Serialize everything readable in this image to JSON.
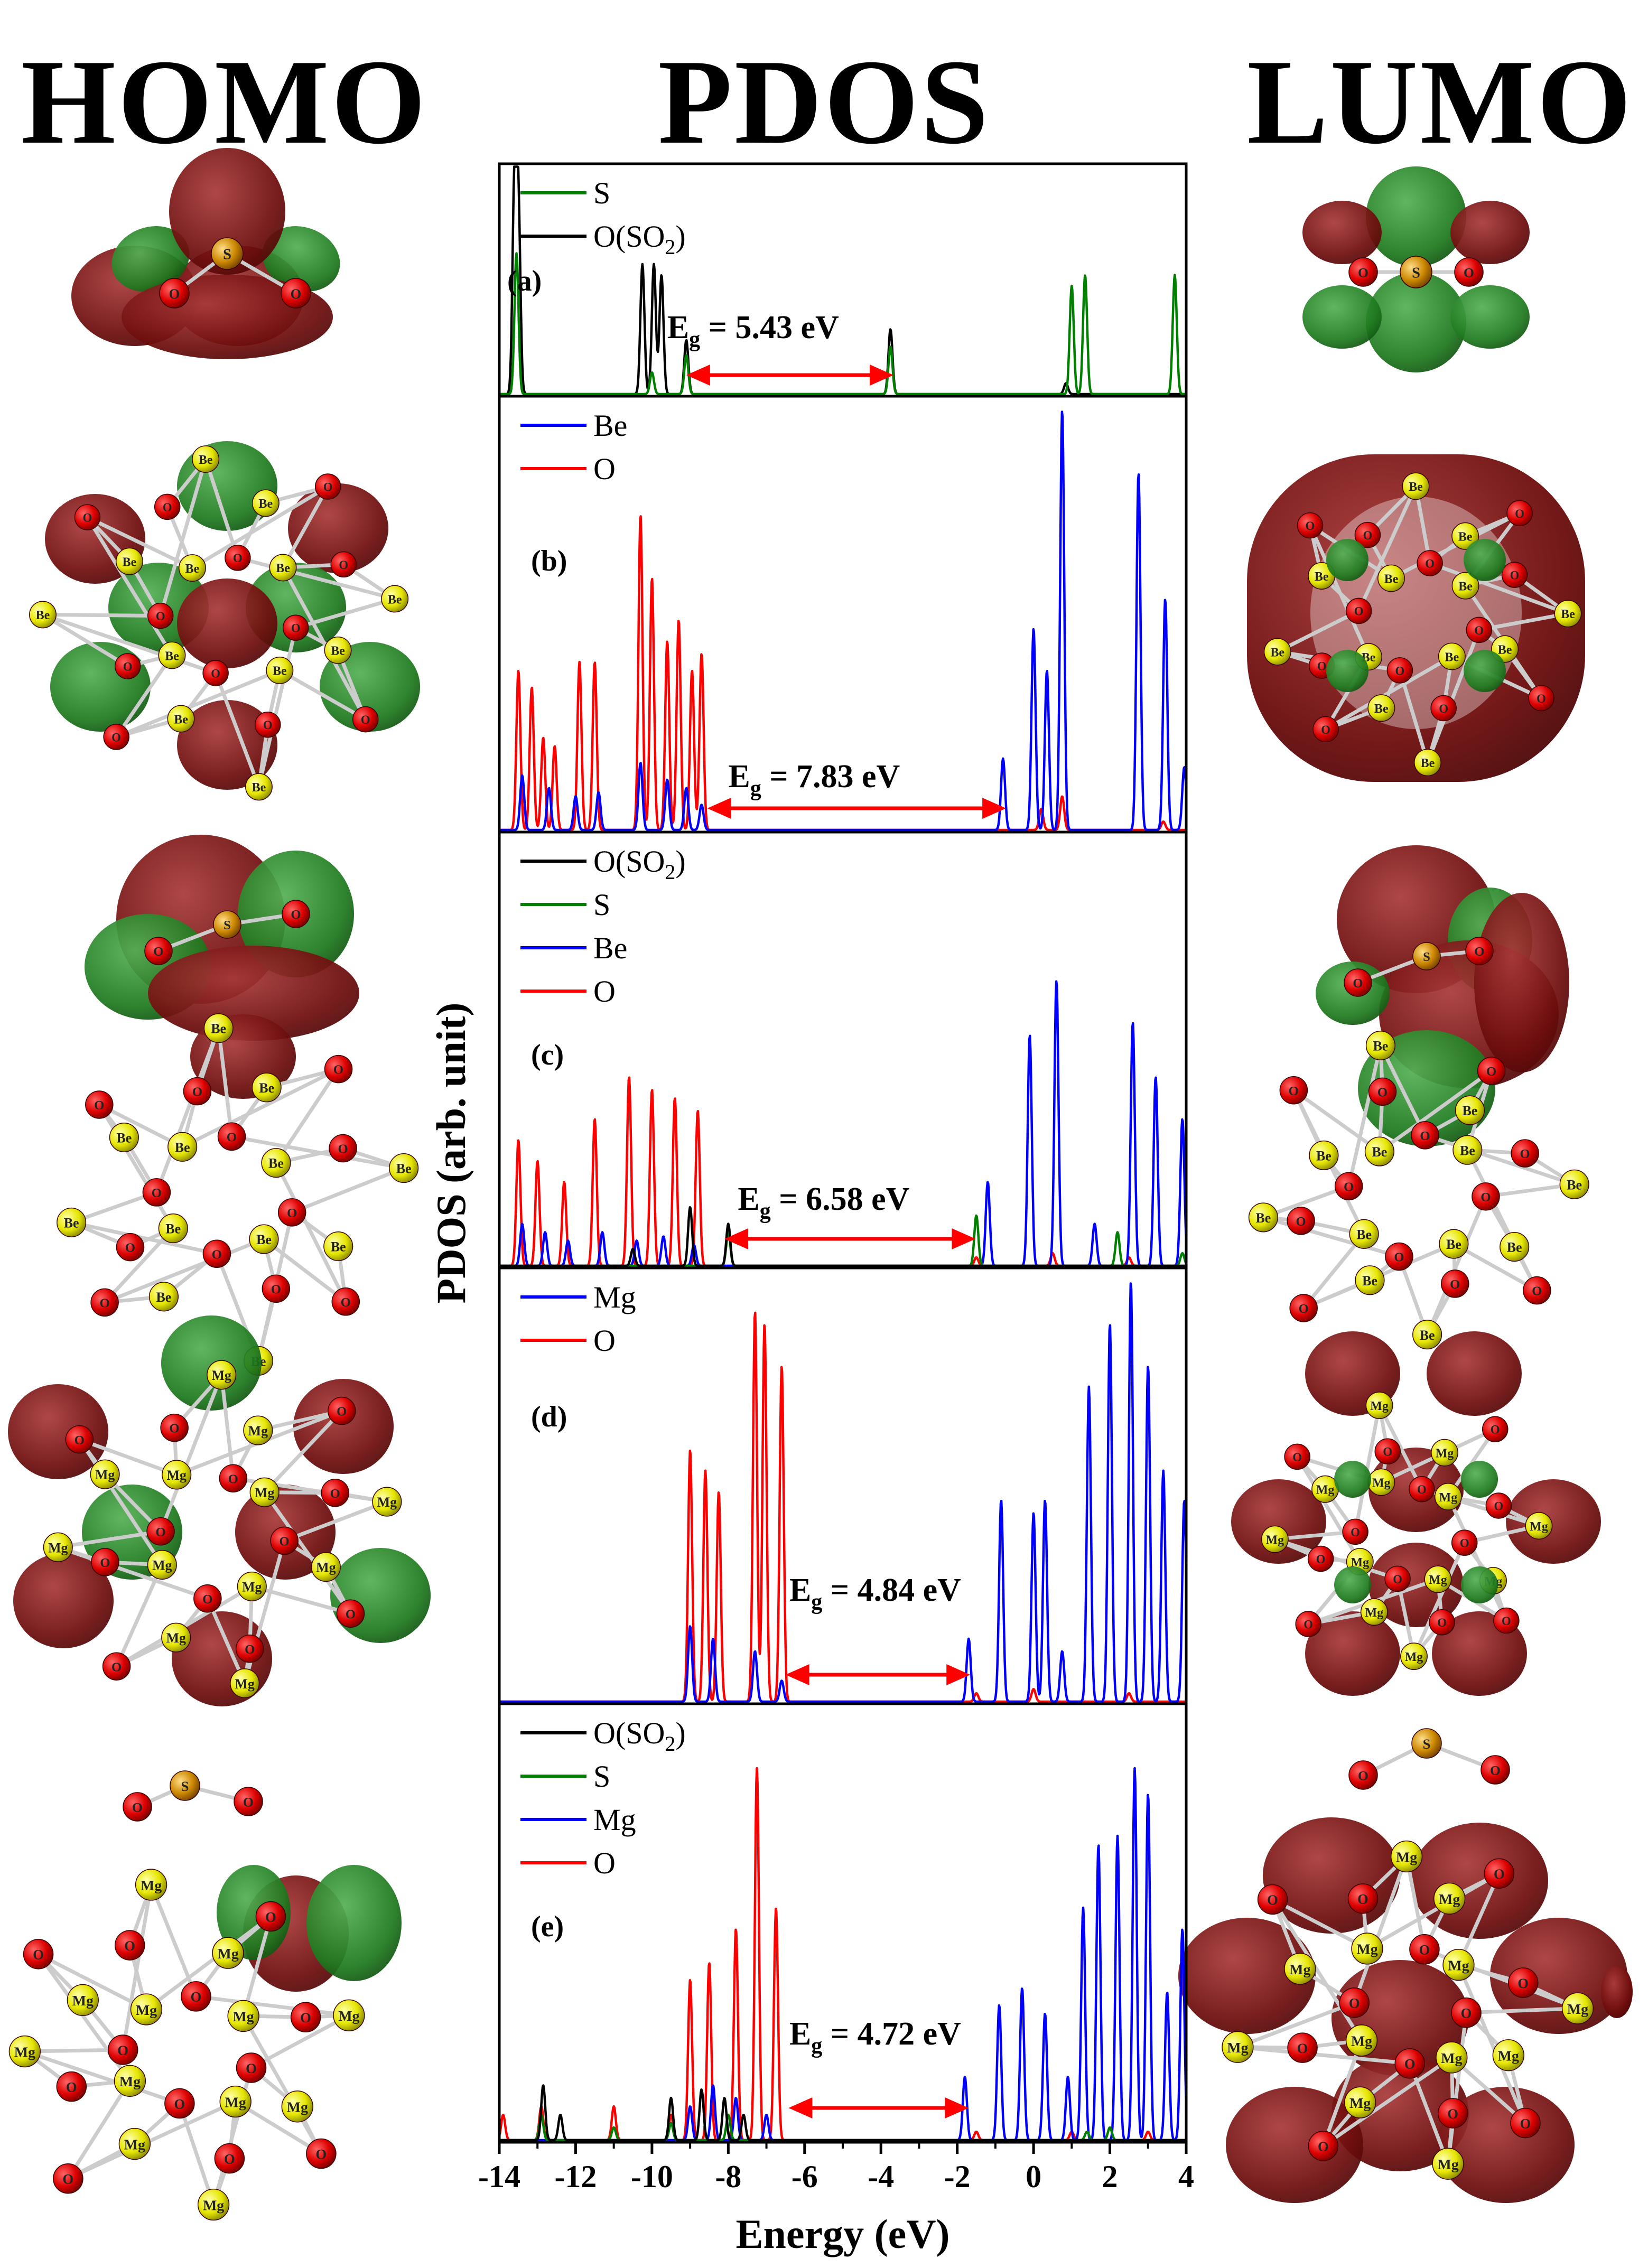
{
  "headers": {
    "homo": "HOMO",
    "pdos": "PDOS",
    "lumo": "LUMO"
  },
  "colors": {
    "S": "#008000",
    "O_SO2": "#000000",
    "Be": "#0000ff",
    "O": "#ff0000",
    "Mg": "#0000ff",
    "gap_arrow": "#ff0000",
    "orbital_red": "#6e0d0d",
    "orbital_green": "#1f7a1f",
    "atom_O": "#dd0000",
    "atom_metal": "#e6e600",
    "atom_S": "#cc8800"
  },
  "chart_data": {
    "type": "line",
    "title": "PDOS",
    "xlabel": "Energy (eV)",
    "ylabel": "PDOS (arb. unit)",
    "xlim": [
      -14,
      4
    ],
    "xticks": [
      -14,
      -12,
      -10,
      -8,
      -6,
      -4,
      -2,
      0,
      2,
      4
    ],
    "xtick_labels": [
      "-14",
      "-12",
      "-10",
      "-8",
      "-6",
      "-4",
      "-2",
      "0",
      "2",
      "4"
    ],
    "panels": [
      {
        "label": "(a)",
        "gap_text": "E",
        "gap_sub": "g",
        "gap_value": " = 5.43 eV",
        "gap_from": -9.1,
        "gap_to": -3.67,
        "legend": [
          {
            "name": "S",
            "color": "#008000"
          },
          {
            "name": "O(SO",
            "sub": "2",
            "tail": ")",
            "color": "#000000"
          }
        ],
        "series": [
          {
            "name": "O(SO2)",
            "color": "#000000",
            "peaks": [
              [
                -13.6,
                1.0
              ],
              [
                -13.5,
                0.85
              ],
              [
                -10.25,
                0.6
              ],
              [
                -9.95,
                0.6
              ],
              [
                -9.75,
                0.55
              ],
              [
                -9.1,
                0.25
              ],
              [
                -3.75,
                0.3
              ],
              [
                0.85,
                0.05
              ]
            ]
          },
          {
            "name": "S",
            "color": "#008000",
            "peaks": [
              [
                -13.55,
                0.65
              ],
              [
                -10.0,
                0.1
              ],
              [
                -9.1,
                0.18
              ],
              [
                -3.75,
                0.22
              ],
              [
                1.0,
                0.5
              ],
              [
                1.35,
                0.55
              ],
              [
                3.7,
                0.55
              ]
            ]
          }
        ]
      },
      {
        "label": "(b)",
        "gap_text": "E",
        "gap_sub": "g",
        "gap_value": " = 7.83 eV",
        "gap_from": -8.55,
        "gap_to": -0.72,
        "legend": [
          {
            "name": "Be",
            "color": "#0000ff"
          },
          {
            "name": "O",
            "color": "#ff0000"
          }
        ],
        "series": [
          {
            "name": "O",
            "color": "#ff0000",
            "peaks": [
              [
                -13.5,
                0.38
              ],
              [
                -13.15,
                0.34
              ],
              [
                -12.85,
                0.22
              ],
              [
                -12.55,
                0.2
              ],
              [
                -11.9,
                0.4
              ],
              [
                -11.5,
                0.4
              ],
              [
                -10.3,
                0.75
              ],
              [
                -10.0,
                0.6
              ],
              [
                -9.6,
                0.45
              ],
              [
                -9.3,
                0.5
              ],
              [
                -8.95,
                0.38
              ],
              [
                -8.7,
                0.42
              ],
              [
                0.2,
                0.05
              ],
              [
                0.75,
                0.08
              ],
              [
                3.4,
                0.02
              ]
            ]
          },
          {
            "name": "Be",
            "color": "#0000ff",
            "peaks": [
              [
                -13.4,
                0.13
              ],
              [
                -12.7,
                0.1
              ],
              [
                -12.0,
                0.08
              ],
              [
                -11.4,
                0.09
              ],
              [
                -10.3,
                0.16
              ],
              [
                -9.6,
                0.12
              ],
              [
                -9.1,
                0.1
              ],
              [
                -8.7,
                0.06
              ],
              [
                -0.8,
                0.17
              ],
              [
                0.0,
                0.48
              ],
              [
                0.35,
                0.38
              ],
              [
                0.75,
                1.0
              ],
              [
                2.75,
                0.85
              ],
              [
                3.45,
                0.55
              ],
              [
                3.95,
                0.15
              ]
            ]
          }
        ]
      },
      {
        "label": "(c)",
        "gap_text": "E",
        "gap_sub": "g",
        "gap_value": " = 6.58 eV",
        "gap_from": -8.1,
        "gap_to": -1.52,
        "legend": [
          {
            "name": "O(SO",
            "sub": "2",
            "tail": ")",
            "color": "#000000"
          },
          {
            "name": "S",
            "color": "#008000"
          },
          {
            "name": "Be",
            "color": "#0000ff"
          },
          {
            "name": "O",
            "color": "#ff0000"
          }
        ],
        "series": [
          {
            "name": "O",
            "color": "#ff0000",
            "peaks": [
              [
                -13.5,
                0.3
              ],
              [
                -13.0,
                0.25
              ],
              [
                -12.3,
                0.2
              ],
              [
                -11.5,
                0.35
              ],
              [
                -10.6,
                0.45
              ],
              [
                -10.0,
                0.42
              ],
              [
                -9.4,
                0.4
              ],
              [
                -8.8,
                0.37
              ],
              [
                -1.5,
                0.02
              ],
              [
                0.5,
                0.03
              ],
              [
                2.5,
                0.02
              ]
            ]
          },
          {
            "name": "Be",
            "color": "#0000ff",
            "peaks": [
              [
                -13.4,
                0.1
              ],
              [
                -12.8,
                0.08
              ],
              [
                -12.2,
                0.06
              ],
              [
                -11.3,
                0.08
              ],
              [
                -10.4,
                0.06
              ],
              [
                -9.7,
                0.07
              ],
              [
                -8.9,
                0.05
              ],
              [
                -1.2,
                0.2
              ],
              [
                -0.1,
                0.55
              ],
              [
                0.6,
                0.68
              ],
              [
                2.6,
                0.58
              ],
              [
                3.2,
                0.45
              ],
              [
                3.9,
                0.35
              ],
              [
                1.6,
                0.1
              ]
            ]
          },
          {
            "name": "S",
            "color": "#008000",
            "peaks": [
              [
                -8.0,
                0.08
              ],
              [
                -1.5,
                0.12
              ],
              [
                2.2,
                0.08
              ],
              [
                3.9,
                0.03
              ]
            ]
          },
          {
            "name": "O(SO2)",
            "color": "#000000",
            "peaks": [
              [
                -9.0,
                0.14
              ],
              [
                -8.0,
                0.1
              ],
              [
                -10.5,
                0.04
              ]
            ]
          }
        ]
      },
      {
        "label": "(d)",
        "gap_text": "E",
        "gap_sub": "g",
        "gap_value": " = 4.84 eV",
        "gap_from": -6.5,
        "gap_to": -1.66,
        "legend": [
          {
            "name": "Mg",
            "color": "#0000ff"
          },
          {
            "name": "O",
            "color": "#ff0000"
          }
        ],
        "series": [
          {
            "name": "O",
            "color": "#ff0000",
            "peaks": [
              [
                -9.0,
                0.6
              ],
              [
                -8.6,
                0.55
              ],
              [
                -8.25,
                0.5
              ],
              [
                -7.3,
                0.93
              ],
              [
                -7.05,
                0.9
              ],
              [
                -6.6,
                0.8
              ],
              [
                -1.5,
                0.02
              ],
              [
                0.0,
                0.03
              ],
              [
                2.5,
                0.02
              ]
            ]
          },
          {
            "name": "Mg",
            "color": "#0000ff",
            "peaks": [
              [
                -9.0,
                0.18
              ],
              [
                -8.4,
                0.15
              ],
              [
                -7.3,
                0.12
              ],
              [
                -6.6,
                0.05
              ],
              [
                -1.7,
                0.15
              ],
              [
                -0.85,
                0.48
              ],
              [
                0.0,
                0.45
              ],
              [
                0.3,
                0.48
              ],
              [
                0.75,
                0.12
              ],
              [
                1.45,
                0.75
              ],
              [
                2.0,
                0.9
              ],
              [
                2.55,
                1.0
              ],
              [
                3.0,
                0.8
              ],
              [
                3.4,
                0.55
              ],
              [
                3.95,
                0.48
              ]
            ]
          }
        ]
      },
      {
        "label": "(e)",
        "gap_text": "E",
        "gap_sub": "g",
        "gap_value": " = 4.72 eV",
        "gap_from": -6.42,
        "gap_to": -1.7,
        "legend": [
          {
            "name": "O(SO",
            "sub": "2",
            "tail": ")",
            "color": "#000000"
          },
          {
            "name": "S",
            "color": "#008000"
          },
          {
            "name": "Mg",
            "color": "#0000ff"
          },
          {
            "name": "O",
            "color": "#ff0000"
          }
        ],
        "series": [
          {
            "name": "O",
            "color": "#ff0000",
            "peaks": [
              [
                -13.9,
                0.06
              ],
              [
                -12.9,
                0.08
              ],
              [
                -11.0,
                0.08
              ],
              [
                -9.5,
                0.06
              ],
              [
                -9.0,
                0.38
              ],
              [
                -8.5,
                0.42
              ],
              [
                -7.8,
                0.5
              ],
              [
                -7.25,
                0.88
              ],
              [
                -6.75,
                0.55
              ],
              [
                -1.5,
                0.02
              ],
              [
                1.0,
                0.02
              ],
              [
                3.0,
                0.02
              ]
            ]
          },
          {
            "name": "Mg",
            "color": "#0000ff",
            "peaks": [
              [
                -9.0,
                0.08
              ],
              [
                -8.4,
                0.13
              ],
              [
                -7.8,
                0.1
              ],
              [
                -7.0,
                0.06
              ],
              [
                -1.8,
                0.15
              ],
              [
                -0.9,
                0.32
              ],
              [
                -0.3,
                0.36
              ],
              [
                0.3,
                0.3
              ],
              [
                0.9,
                0.15
              ],
              [
                1.3,
                0.55
              ],
              [
                1.7,
                0.7
              ],
              [
                2.2,
                0.72
              ],
              [
                2.65,
                0.88
              ],
              [
                3.0,
                0.82
              ],
              [
                3.5,
                0.35
              ],
              [
                3.9,
                0.5
              ]
            ]
          },
          {
            "name": "S",
            "color": "#008000",
            "peaks": [
              [
                -12.9,
                0.06
              ],
              [
                -11.0,
                0.03
              ],
              [
                -9.5,
                0.04
              ],
              [
                -8.0,
                0.06
              ],
              [
                1.4,
                0.02
              ],
              [
                2.0,
                0.03
              ]
            ]
          },
          {
            "name": "O(SO2)",
            "color": "#000000",
            "peaks": [
              [
                -12.85,
                0.13
              ],
              [
                -12.4,
                0.06
              ],
              [
                -9.5,
                0.1
              ],
              [
                -8.7,
                0.12
              ],
              [
                -8.1,
                0.1
              ],
              [
                -7.6,
                0.06
              ]
            ]
          }
        ]
      }
    ]
  },
  "molecules": [
    {
      "row": "a",
      "homo": {
        "atoms": [
          {
            "el": "S",
            "label": "S"
          },
          {
            "el": "O",
            "label": "O"
          },
          {
            "el": "O",
            "label": "O"
          }
        ]
      },
      "lumo": {
        "atoms": [
          {
            "el": "S",
            "label": "S"
          },
          {
            "el": "O",
            "label": "O"
          },
          {
            "el": "O",
            "label": "O"
          }
        ]
      }
    },
    {
      "row": "b",
      "metal": "Be"
    },
    {
      "row": "c",
      "metal": "Be"
    },
    {
      "row": "d",
      "metal": "Mg"
    },
    {
      "row": "e",
      "metal": "Mg"
    }
  ]
}
